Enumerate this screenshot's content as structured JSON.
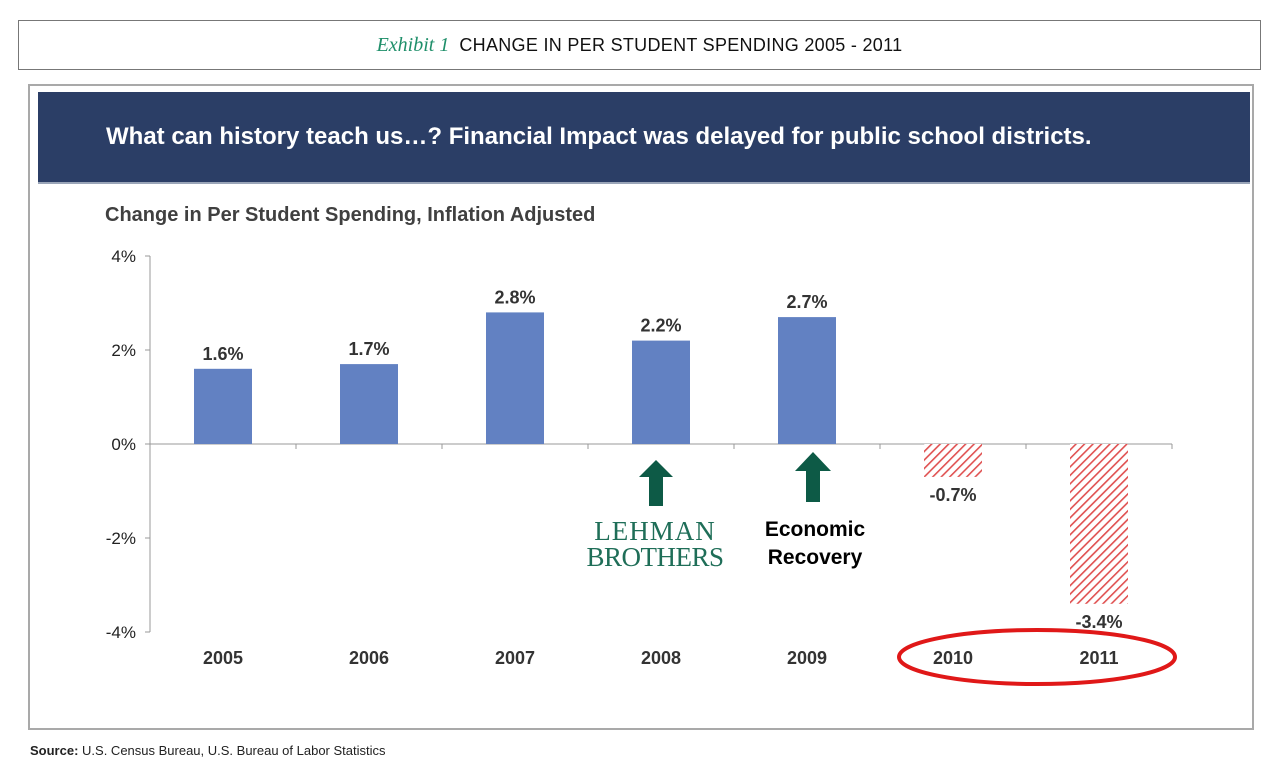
{
  "exhibit": {
    "label": "Exhibit 1",
    "title": "CHANGE IN PER STUDENT SPENDING 2005 - 2011"
  },
  "banner": {
    "text": "What can history teach us…? Financial Impact was delayed for public school districts."
  },
  "annotations": {
    "lehman_line1": "LEHMAN",
    "lehman_line2": "BROTHERS",
    "recovery_line1": "Economic",
    "recovery_line2": "Recovery"
  },
  "source": {
    "label": "Source:",
    "text": "U.S. Census Bureau, U.S. Bureau of Labor Statistics"
  },
  "colors": {
    "positive_bar": "#6281c2",
    "negative_bar": "#e05050",
    "arrow": "#0d5a46",
    "highlight_ellipse": "#e01818",
    "banner": "#2b3e66"
  },
  "chart_data": {
    "type": "bar",
    "title": "Change in Per Student Spending, Inflation Adjusted",
    "categories": [
      "2005",
      "2006",
      "2007",
      "2008",
      "2009",
      "2010",
      "2011"
    ],
    "values": [
      1.6,
      1.7,
      2.8,
      2.2,
      2.7,
      -0.7,
      -3.4
    ],
    "value_labels": [
      "1.6%",
      "1.7%",
      "2.8%",
      "2.2%",
      "2.7%",
      "-0.7%",
      "-3.4%"
    ],
    "y_ticks": [
      "4%",
      "2%",
      "0%",
      "-2%",
      "-4%"
    ],
    "y_tick_values": [
      4,
      2,
      0,
      -2,
      -4
    ],
    "ylim": [
      -4,
      4
    ],
    "xlabel": "",
    "ylabel": "",
    "grid": false,
    "negative_style": "hatched",
    "highlighted_categories": [
      "2010",
      "2011"
    ],
    "arrows_under": [
      "2008",
      "2009"
    ]
  }
}
